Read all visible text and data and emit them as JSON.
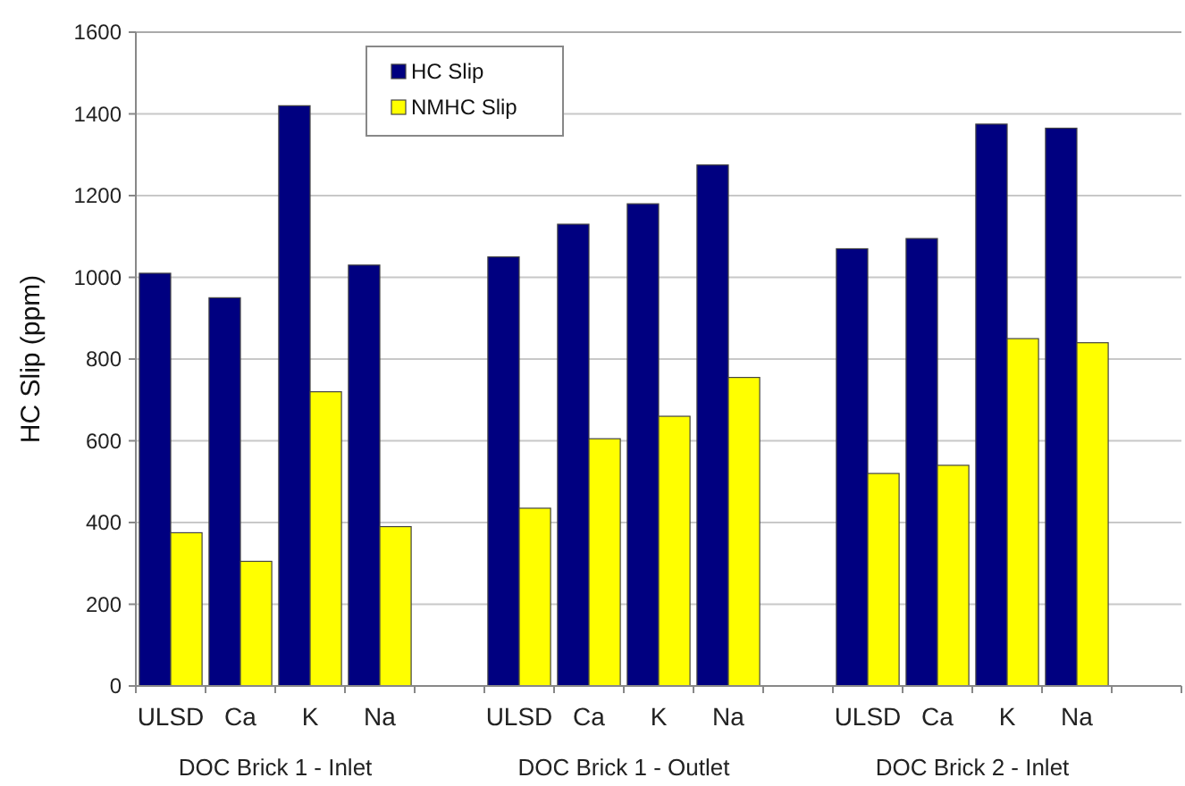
{
  "chart_data": {
    "type": "bar",
    "ylabel": "HC Slip (ppm)",
    "categories": [
      "ULSD",
      "Ca",
      "K",
      "Na",
      null,
      "ULSD",
      "Ca",
      "K",
      "Na",
      null,
      "ULSD",
      "Ca",
      "K",
      "Na",
      null
    ],
    "series": [
      {
        "name": "HC Slip",
        "color": "#000080",
        "values": [
          1010,
          950,
          1420,
          1030,
          null,
          1050,
          1130,
          1180,
          1275,
          null,
          1070,
          1095,
          1375,
          1365,
          null
        ]
      },
      {
        "name": "NMHC Slip",
        "color": "#ffff00",
        "values": [
          375,
          305,
          720,
          390,
          null,
          435,
          605,
          660,
          755,
          null,
          520,
          540,
          850,
          840,
          null
        ]
      }
    ],
    "ylim": [
      0,
      1600
    ],
    "yticks": [
      0,
      200,
      400,
      600,
      800,
      1000,
      1200,
      1400,
      1600
    ],
    "grid": "y",
    "legend": "top",
    "annotations": [
      "DOC Brick 1 - Inlet",
      "DOC Brick 1 - Outlet",
      "DOC Brick 2 - Inlet"
    ]
  }
}
